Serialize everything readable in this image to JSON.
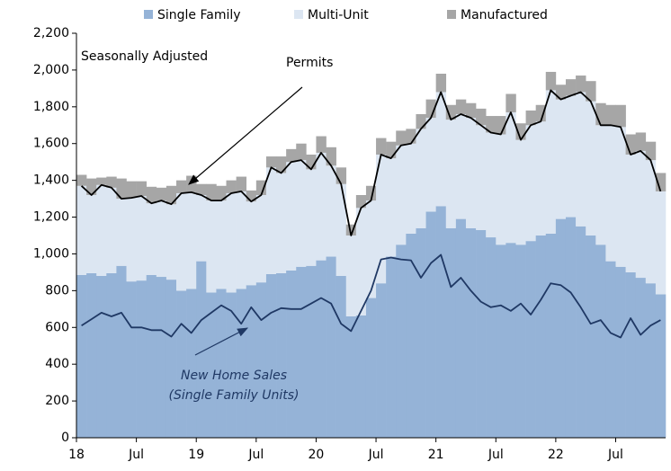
{
  "chart_data": {
    "type": "stacked-bar-line",
    "subtitle": "Seasonally Adjusted",
    "categories": [
      "18",
      null,
      null,
      null,
      null,
      null,
      "Jul",
      null,
      null,
      null,
      null,
      null,
      "19",
      null,
      null,
      null,
      null,
      null,
      "Jul",
      null,
      null,
      null,
      null,
      null,
      "20",
      null,
      null,
      null,
      null,
      null,
      "Jul",
      null,
      null,
      null,
      null,
      null,
      "21",
      null,
      null,
      null,
      null,
      null,
      "Jul",
      null,
      null,
      null,
      null,
      null,
      "22",
      null,
      null,
      null,
      null,
      null,
      "Jul",
      null,
      null,
      null,
      null
    ],
    "ylim": [
      0,
      2200
    ],
    "yticks": [
      0,
      200,
      400,
      600,
      800,
      {
        "value": 1000,
        "label": "1,000"
      },
      {
        "value": 1200,
        "label": "1,200"
      },
      {
        "value": 1400,
        "label": "1,400"
      },
      {
        "value": 1600,
        "label": "1,600"
      },
      {
        "value": 1800,
        "label": "1,800"
      },
      {
        "value": 2000,
        "label": "2,000"
      },
      {
        "value": 2200,
        "label": "2,200"
      }
    ],
    "series": [
      {
        "name": "Single Family",
        "color": "#95b3d7",
        "values": [
          885,
          895,
          880,
          895,
          935,
          850,
          855,
          885,
          875,
          860,
          800,
          810,
          960,
          790,
          810,
          790,
          810,
          830,
          845,
          890,
          895,
          910,
          930,
          935,
          965,
          985,
          880,
          660,
          665,
          760,
          840,
          985,
          1050,
          1110,
          1140,
          1230,
          1260,
          1140,
          1190,
          1140,
          1130,
          1090,
          1050,
          1060,
          1050,
          1070,
          1100,
          1110,
          1190,
          1200,
          1150,
          1100,
          1050,
          960,
          930,
          900,
          870,
          840,
          780
        ]
      },
      {
        "name": "Multi-Unit",
        "color": "#dce6f2",
        "values": [
          485,
          425,
          495,
          465,
          365,
          455,
          460,
          390,
          415,
          410,
          530,
          525,
          360,
          500,
          480,
          540,
          530,
          455,
          475,
          580,
          545,
          590,
          580,
          525,
          585,
          495,
          500,
          440,
          585,
          530,
          700,
          535,
          540,
          490,
          540,
          510,
          620,
          590,
          570,
          600,
          570,
          570,
          600,
          710,
          570,
          630,
          620,
          780,
          650,
          660,
          730,
          730,
          650,
          740,
          760,
          640,
          690,
          670,
          560
        ]
      },
      {
        "name": "Manufactured",
        "color": "#a6a6a6",
        "values": [
          60,
          90,
          40,
          60,
          110,
          90,
          80,
          90,
          70,
          100,
          70,
          90,
          60,
          90,
          80,
          70,
          80,
          60,
          80,
          60,
          90,
          70,
          90,
          80,
          90,
          100,
          90,
          60,
          70,
          80,
          90,
          90,
          80,
          80,
          80,
          100,
          100,
          80,
          80,
          80,
          90,
          90,
          100,
          100,
          90,
          80,
          90,
          100,
          80,
          90,
          90,
          110,
          120,
          110,
          120,
          110,
          100,
          100,
          100
        ]
      }
    ],
    "lines": [
      {
        "label": "Permits",
        "color": "#000000",
        "values": [
          1370,
          1320,
          1375,
          1360,
          1300,
          1305,
          1315,
          1275,
          1290,
          1270,
          1330,
          1335,
          1320,
          1290,
          1290,
          1330,
          1340,
          1285,
          1320,
          1470,
          1440,
          1500,
          1510,
          1460,
          1550,
          1480,
          1380,
          1100,
          1250,
          1290,
          1540,
          1520,
          1590,
          1600,
          1680,
          1740,
          1880,
          1730,
          1760,
          1740,
          1700,
          1660,
          1650,
          1770,
          1620,
          1700,
          1720,
          1890,
          1840,
          1860,
          1880,
          1830,
          1700,
          1700,
          1690,
          1540,
          1560,
          1510,
          1340
        ]
      },
      {
        "label": [
          "New Home Sales",
          "(Single Family Units)"
        ],
        "color": "#1f3864",
        "values": [
          610,
          645,
          680,
          660,
          680,
          600,
          600,
          585,
          585,
          550,
          620,
          570,
          640,
          680,
          720,
          690,
          620,
          710,
          640,
          680,
          705,
          700,
          700,
          730,
          760,
          730,
          620,
          580,
          690,
          800,
          970,
          980,
          970,
          965,
          870,
          950,
          995,
          820,
          870,
          800,
          740,
          710,
          720,
          690,
          730,
          670,
          750,
          840,
          830,
          790,
          710,
          620,
          640,
          570,
          545,
          650,
          560,
          610,
          640
        ]
      }
    ]
  }
}
